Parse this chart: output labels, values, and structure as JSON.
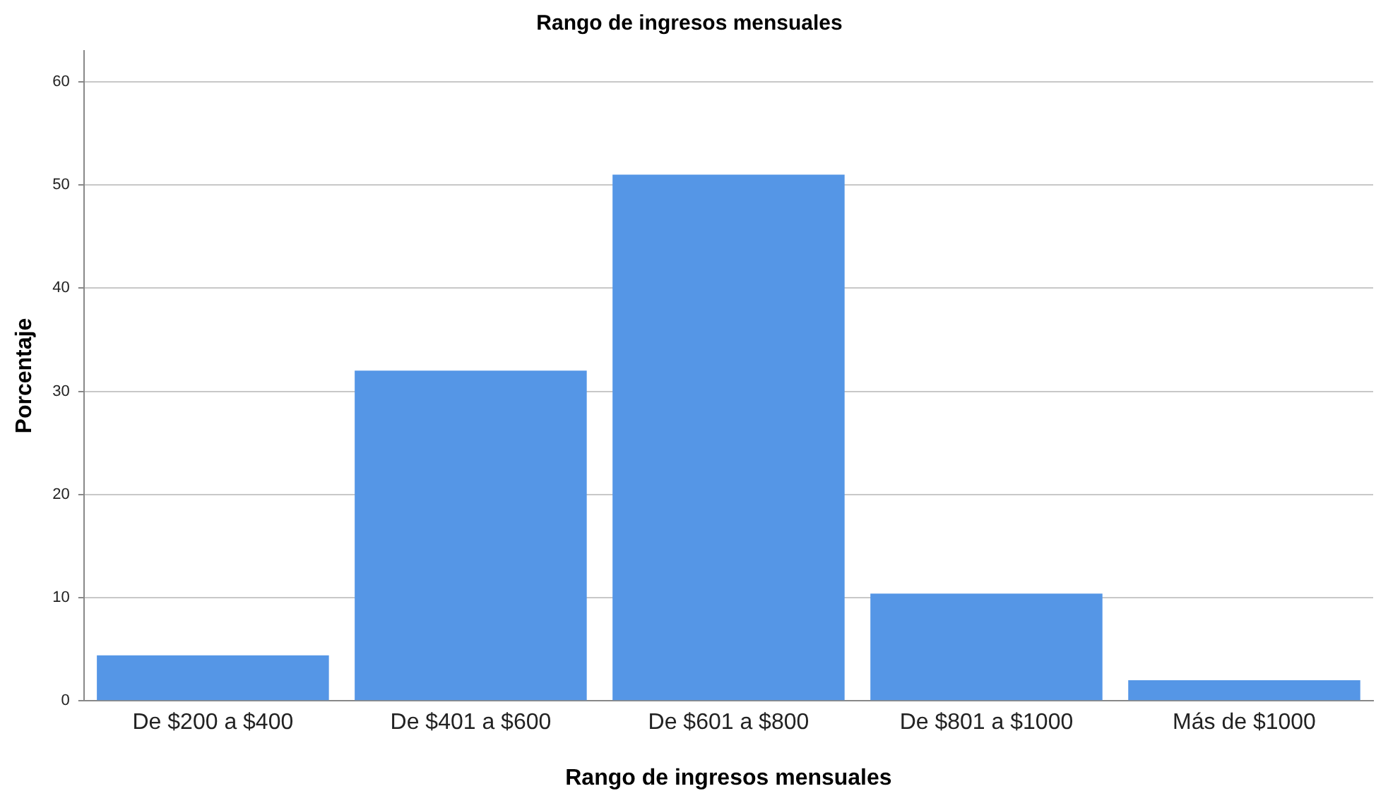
{
  "chart_data": {
    "type": "bar",
    "title": "Rango de ingresos mensuales",
    "xlabel": "Rango de ingresos mensuales",
    "ylabel": "Porcentaje",
    "categories": [
      "De $200 a $400",
      "De $401 a $600",
      "De $601 a $800",
      "De $801 a $1000",
      "Más de $1000"
    ],
    "values": [
      4.4,
      32,
      51,
      10.4,
      2
    ],
    "color": "#5596e6",
    "ylim": [
      0,
      63
    ],
    "yticks": [
      0,
      10,
      20,
      30,
      40,
      50,
      60
    ],
    "grid": "y"
  }
}
